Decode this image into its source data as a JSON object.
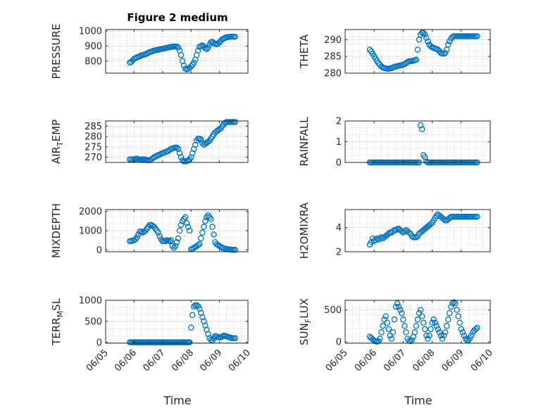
{
  "figure": {
    "title": "Figure 2 medium",
    "xlabel": "Time"
  },
  "chart_data": [
    {
      "type": "scatter",
      "ylabel": "PRESSURE",
      "ylim": [
        720,
        1010
      ],
      "yticks": [
        800,
        900,
        1000
      ],
      "ytick_labels": [
        "800",
        "900",
        "1000"
      ],
      "xlim": [
        5,
        10
      ],
      "xticks": [],
      "xtick_labels": [],
      "grid": true,
      "marker": "circle-open",
      "color": "#0072bd",
      "x": [
        5.85,
        5.9,
        5.95,
        6.0,
        6.05,
        6.1,
        6.15,
        6.2,
        6.25,
        6.3,
        6.35,
        6.4,
        6.45,
        6.5,
        6.55,
        6.6,
        6.65,
        6.7,
        6.75,
        6.8,
        6.85,
        6.9,
        6.95,
        7.0,
        7.05,
        7.1,
        7.15,
        7.2,
        7.25,
        7.3,
        7.35,
        7.4,
        7.45,
        7.5,
        7.55,
        7.6,
        7.65,
        7.7,
        7.75,
        7.8,
        7.85,
        7.9,
        7.95,
        8.0,
        8.05,
        8.1,
        8.15,
        8.2,
        8.25,
        8.3,
        8.35,
        8.4,
        8.45,
        8.5,
        8.55,
        8.6,
        8.65,
        8.7,
        8.75,
        8.8,
        8.85,
        8.9,
        8.95,
        9.0,
        9.05,
        9.1,
        9.15,
        9.2,
        9.25,
        9.3,
        9.35,
        9.4,
        9.45,
        9.5,
        9.55
      ],
      "y": [
        790,
        795,
        805,
        815,
        820,
        825,
        828,
        832,
        838,
        840,
        842,
        845,
        850,
        855,
        860,
        862,
        866,
        870,
        872,
        874,
        876,
        878,
        880,
        882,
        884,
        886,
        888,
        890,
        893,
        895,
        896,
        897,
        897,
        896,
        890,
        870,
        840,
        800,
        770,
        750,
        745,
        748,
        755,
        765,
        775,
        790,
        810,
        840,
        870,
        895,
        900,
        905,
        895,
        885,
        880,
        890,
        910,
        925,
        928,
        920,
        915,
        912,
        915,
        925,
        935,
        945,
        950,
        955,
        958,
        960,
        962,
        962,
        962,
        962,
        962
      ]
    },
    {
      "type": "scatter",
      "ylabel": "THETA",
      "ylim": [
        280,
        293
      ],
      "yticks": [
        280,
        285,
        290
      ],
      "ytick_labels": [
        "280",
        "285",
        "290"
      ],
      "xlim": [
        5,
        10
      ],
      "xticks": [],
      "xtick_labels": [],
      "grid": true,
      "marker": "circle-open",
      "color": "#0072bd",
      "x": [
        5.85,
        5.9,
        5.95,
        6.0,
        6.05,
        6.1,
        6.15,
        6.2,
        6.25,
        6.3,
        6.35,
        6.4,
        6.45,
        6.5,
        6.55,
        6.6,
        6.65,
        6.7,
        6.75,
        6.8,
        6.85,
        6.9,
        6.95,
        7.0,
        7.05,
        7.1,
        7.15,
        7.2,
        7.25,
        7.3,
        7.35,
        7.4,
        7.45,
        7.5,
        7.55,
        7.6,
        7.65,
        7.7,
        7.75,
        7.8,
        7.85,
        7.9,
        7.95,
        8.0,
        8.05,
        8.1,
        8.15,
        8.2,
        8.25,
        8.3,
        8.35,
        8.4,
        8.45,
        8.5,
        8.55,
        8.6,
        8.65,
        8.7,
        8.75,
        8.8,
        8.85,
        8.9,
        8.95,
        9.0,
        9.05,
        9.1,
        9.15,
        9.2,
        9.25,
        9.3,
        9.35,
        9.4,
        9.45,
        9.5,
        9.55
      ],
      "y": [
        287,
        286.5,
        285.8,
        285,
        284.3,
        283.6,
        283,
        282.5,
        282,
        281.7,
        281.5,
        281.4,
        281.3,
        281.3,
        281.4,
        281.5,
        281.7,
        281.9,
        282,
        282.1,
        282.2,
        282.3,
        282.4,
        282.5,
        282.7,
        283,
        283.3,
        283.5,
        283.6,
        283.6,
        283.7,
        283.8,
        284,
        287,
        290,
        291.5,
        292,
        292,
        291.5,
        290.5,
        289.5,
        288.5,
        288,
        287.7,
        287.5,
        287.3,
        287.2,
        287,
        286.5,
        286,
        285.8,
        285.8,
        286,
        287,
        288.5,
        289.5,
        290.3,
        290.8,
        291,
        291,
        291,
        291,
        291,
        291,
        291,
        291,
        291,
        291,
        291,
        291,
        291,
        291,
        291,
        291,
        291
      ]
    },
    {
      "type": "scatter",
      "ylabel": "AIR_TEMP",
      "ylim": [
        267.5,
        287.5
      ],
      "yticks": [
        270,
        275,
        280,
        285
      ],
      "ytick_labels": [
        "270",
        "275",
        "280",
        "285"
      ],
      "xlim": [
        5,
        10
      ],
      "xticks": [],
      "xtick_labels": [],
      "grid": true,
      "marker": "circle-open",
      "color": "#0072bd",
      "x": [
        5.85,
        5.9,
        5.95,
        6.0,
        6.05,
        6.1,
        6.15,
        6.2,
        6.25,
        6.3,
        6.35,
        6.4,
        6.45,
        6.5,
        6.55,
        6.6,
        6.65,
        6.7,
        6.75,
        6.8,
        6.85,
        6.9,
        6.95,
        7.0,
        7.05,
        7.1,
        7.15,
        7.2,
        7.25,
        7.3,
        7.35,
        7.4,
        7.45,
        7.5,
        7.55,
        7.6,
        7.65,
        7.7,
        7.75,
        7.8,
        7.85,
        7.9,
        7.95,
        8.0,
        8.05,
        8.1,
        8.15,
        8.2,
        8.25,
        8.3,
        8.35,
        8.4,
        8.45,
        8.5,
        8.55,
        8.6,
        8.65,
        8.7,
        8.75,
        8.8,
        8.85,
        8.9,
        8.95,
        9.0,
        9.05,
        9.1,
        9.15,
        9.2,
        9.25,
        9.3,
        9.35,
        9.4,
        9.45,
        9.5,
        9.55
      ],
      "y": [
        269,
        269,
        269,
        269,
        269.2,
        269.3,
        269,
        268.8,
        268.9,
        269,
        269,
        268.9,
        268.7,
        268.5,
        268.6,
        269,
        269.5,
        270,
        270.3,
        270.7,
        271,
        271.3,
        271.7,
        272,
        272.2,
        272.5,
        272.8,
        273,
        273.5,
        274,
        274.3,
        274.5,
        274.6,
        274.6,
        274,
        272,
        270,
        268.5,
        268,
        268,
        268.2,
        268.5,
        269,
        270,
        272,
        274,
        276,
        278,
        279,
        279,
        278.5,
        277,
        276,
        276.5,
        277,
        277.5,
        278,
        279,
        280,
        281,
        282,
        282.5,
        283,
        283.5,
        284,
        285,
        286,
        286.5,
        287,
        287,
        287,
        287,
        287,
        287,
        287
      ]
    },
    {
      "type": "scatter",
      "ylabel": "RAINFALL",
      "ylim": [
        0,
        2
      ],
      "yticks": [
        0,
        1,
        2
      ],
      "ytick_labels": [
        "0",
        "1",
        "2"
      ],
      "xlim": [
        5,
        10
      ],
      "xticks": [],
      "xtick_labels": [],
      "grid": true,
      "marker": "circle-open",
      "color": "#0072bd",
      "x": [
        5.85,
        5.9,
        5.95,
        6.0,
        6.05,
        6.1,
        6.15,
        6.2,
        6.25,
        6.3,
        6.35,
        6.4,
        6.45,
        6.5,
        6.55,
        6.6,
        6.65,
        6.7,
        6.75,
        6.8,
        6.85,
        6.9,
        6.95,
        7.0,
        7.05,
        7.1,
        7.15,
        7.2,
        7.25,
        7.3,
        7.35,
        7.4,
        7.45,
        7.5,
        7.55,
        7.6,
        7.65,
        7.7,
        7.75,
        7.8,
        7.85,
        7.9,
        7.95,
        8.0,
        8.05,
        8.1,
        8.15,
        8.2,
        8.25,
        8.3,
        8.35,
        8.4,
        8.45,
        8.5,
        8.55,
        8.6,
        8.65,
        8.7,
        8.75,
        8.8,
        8.85,
        8.9,
        8.95,
        9.0,
        9.05,
        9.1,
        9.15,
        9.2,
        9.25,
        9.3,
        9.35,
        9.4,
        9.45,
        9.5,
        9.55
      ],
      "y": [
        0,
        0,
        0,
        0,
        0,
        0,
        0,
        0,
        0,
        0,
        0,
        0,
        0,
        0,
        0,
        0,
        0,
        0,
        0,
        0,
        0,
        0,
        0,
        0,
        0,
        0,
        0,
        0,
        0,
        0,
        0,
        0,
        0,
        0,
        0,
        1.8,
        1.6,
        0.35,
        0.25,
        0.05,
        0,
        0,
        0,
        0,
        0,
        0,
        0,
        0,
        0,
        0,
        0,
        0,
        0,
        0,
        0,
        0,
        0,
        0,
        0,
        0,
        0,
        0,
        0,
        0,
        0,
        0,
        0,
        0,
        0,
        0,
        0,
        0,
        0,
        0,
        0
      ]
    },
    {
      "type": "scatter",
      "ylabel": "MIXDEPTH",
      "ylim": [
        -100,
        2100
      ],
      "yticks": [
        0,
        1000,
        2000
      ],
      "ytick_labels": [
        "0",
        "1000",
        "2000"
      ],
      "xlim": [
        5,
        10
      ],
      "xticks": [],
      "xtick_labels": [],
      "grid": true,
      "marker": "circle-open",
      "color": "#0072bd",
      "x": [
        5.85,
        5.9,
        5.95,
        6.0,
        6.05,
        6.1,
        6.15,
        6.2,
        6.25,
        6.3,
        6.35,
        6.4,
        6.45,
        6.5,
        6.55,
        6.6,
        6.65,
        6.7,
        6.75,
        6.8,
        6.85,
        6.9,
        6.95,
        7.0,
        7.05,
        7.1,
        7.15,
        7.2,
        7.25,
        7.3,
        7.35,
        7.4,
        7.45,
        7.5,
        7.55,
        7.6,
        7.65,
        7.7,
        7.75,
        7.8,
        7.85,
        7.9,
        7.95,
        8.0,
        8.05,
        8.1,
        8.15,
        8.2,
        8.25,
        8.3,
        8.35,
        8.4,
        8.45,
        8.5,
        8.55,
        8.6,
        8.65,
        8.7,
        8.75,
        8.8,
        8.85,
        8.9,
        8.95,
        9.0,
        9.05,
        9.1,
        9.15,
        9.2,
        9.25,
        9.3,
        9.35,
        9.4,
        9.45,
        9.5,
        9.55
      ],
      "y": [
        450,
        460,
        480,
        500,
        550,
        650,
        800,
        950,
        950,
        900,
        950,
        1000,
        1100,
        1200,
        1300,
        1300,
        1250,
        1200,
        1100,
        1000,
        900,
        700,
        550,
        450,
        450,
        450,
        500,
        480,
        450,
        500,
        200,
        100,
        200,
        400,
        600,
        1000,
        1300,
        1500,
        1600,
        1700,
        1400,
        1200,
        1000,
        30,
        50,
        100,
        150,
        200,
        250,
        300,
        600,
        900,
        1200,
        1500,
        1700,
        1800,
        1700,
        1600,
        1200,
        800,
        400,
        300,
        250,
        200,
        150,
        100,
        80,
        60,
        40,
        30,
        20,
        10,
        5,
        0,
        0
      ]
    },
    {
      "type": "scatter",
      "ylabel": "H2OMIXRA",
      "ylim": [
        2,
        5.5
      ],
      "yticks": [
        2,
        4
      ],
      "ytick_labels": [
        "2",
        "4"
      ],
      "xlim": [
        5,
        10
      ],
      "xticks": [],
      "xtick_labels": [],
      "grid": true,
      "marker": "circle-open",
      "color": "#0072bd",
      "x": [
        5.85,
        5.9,
        5.95,
        6.0,
        6.05,
        6.1,
        6.15,
        6.2,
        6.25,
        6.3,
        6.35,
        6.4,
        6.45,
        6.5,
        6.55,
        6.6,
        6.65,
        6.7,
        6.75,
        6.8,
        6.85,
        6.9,
        6.95,
        7.0,
        7.05,
        7.1,
        7.15,
        7.2,
        7.25,
        7.3,
        7.35,
        7.4,
        7.45,
        7.5,
        7.55,
        7.6,
        7.65,
        7.7,
        7.75,
        7.8,
        7.85,
        7.9,
        7.95,
        8.0,
        8.05,
        8.1,
        8.15,
        8.2,
        8.25,
        8.3,
        8.35,
        8.4,
        8.45,
        8.5,
        8.55,
        8.6,
        8.65,
        8.7,
        8.75,
        8.8,
        8.85,
        8.9,
        8.95,
        9.0,
        9.05,
        9.1,
        9.15,
        9.2,
        9.25,
        9.3,
        9.35,
        9.4,
        9.45,
        9.5,
        9.55
      ],
      "y": [
        2.6,
        2.8,
        3.1,
        2.9,
        3,
        3.1,
        3,
        3.1,
        3.2,
        3.1,
        3.2,
        3.3,
        3.4,
        3.5,
        3.6,
        3.6,
        3.7,
        3.8,
        3.8,
        3.9,
        3.9,
        3.8,
        3.7,
        3.6,
        3.7,
        3.8,
        3.7,
        3.6,
        3.5,
        3.3,
        3.2,
        3.2,
        3.2,
        3.3,
        3.5,
        3.6,
        3.7,
        3.8,
        3.9,
        4.0,
        4.1,
        4.2,
        4.3,
        4.4,
        4.6,
        4.8,
        5.0,
        5.1,
        5.0,
        4.9,
        4.8,
        4.7,
        4.6,
        4.6,
        4.7,
        4.8,
        4.9,
        4.9,
        4.9,
        4.9,
        4.9,
        4.9,
        4.9,
        4.9,
        4.9,
        4.9,
        4.9,
        4.9,
        4.9,
        4.9,
        4.9,
        4.9,
        4.9,
        4.9,
        4.9
      ]
    },
    {
      "type": "scatter",
      "ylabel": "TERR_MSL",
      "ylim": [
        -20,
        1000
      ],
      "yticks": [
        0,
        500,
        1000
      ],
      "ytick_labels": [
        "0",
        "500",
        "1000"
      ],
      "xlim": [
        5,
        10
      ],
      "xticks": [
        5,
        6,
        7,
        8,
        9,
        10
      ],
      "xtick_labels": [
        "06/05",
        "06/06",
        "06/07",
        "06/08",
        "06/09",
        "06/10"
      ],
      "grid": true,
      "marker": "circle-open",
      "color": "#0072bd",
      "x": [
        5.85,
        5.9,
        5.95,
        6.0,
        6.05,
        6.1,
        6.15,
        6.2,
        6.25,
        6.3,
        6.35,
        6.4,
        6.45,
        6.5,
        6.55,
        6.6,
        6.65,
        6.7,
        6.75,
        6.8,
        6.85,
        6.9,
        6.95,
        7.0,
        7.05,
        7.1,
        7.15,
        7.2,
        7.25,
        7.3,
        7.35,
        7.4,
        7.45,
        7.5,
        7.55,
        7.6,
        7.65,
        7.7,
        7.75,
        7.8,
        7.85,
        7.9,
        7.95,
        8.0,
        8.05,
        8.1,
        8.15,
        8.2,
        8.25,
        8.3,
        8.35,
        8.4,
        8.45,
        8.5,
        8.55,
        8.6,
        8.65,
        8.7,
        8.75,
        8.8,
        8.85,
        8.9,
        8.95,
        9.0,
        9.05,
        9.1,
        9.15,
        9.2,
        9.25,
        9.3,
        9.35,
        9.4,
        9.45,
        9.5,
        9.55
      ],
      "y": [
        0,
        0,
        0,
        0,
        0,
        0,
        0,
        0,
        0,
        0,
        0,
        0,
        0,
        0,
        0,
        0,
        0,
        0,
        0,
        0,
        0,
        0,
        0,
        0,
        0,
        0,
        0,
        0,
        0,
        0,
        0,
        0,
        0,
        0,
        0,
        0,
        0,
        0,
        0,
        0,
        0,
        0,
        0,
        350,
        650,
        850,
        880,
        880,
        860,
        800,
        700,
        600,
        500,
        400,
        300,
        200,
        100,
        60,
        40,
        100,
        150,
        140,
        120,
        120,
        120,
        140,
        160,
        150,
        140,
        130,
        120,
        110,
        100,
        100,
        100
      ]
    },
    {
      "type": "scatter",
      "ylabel": "SUN_FLUX",
      "ylim": [
        -20,
        650
      ],
      "yticks": [
        0,
        500
      ],
      "ytick_labels": [
        "0",
        "500"
      ],
      "xlim": [
        5,
        10
      ],
      "xticks": [
        5,
        6,
        7,
        8,
        9,
        10
      ],
      "xtick_labels": [
        "06/05",
        "06/06",
        "06/07",
        "06/08",
        "06/09",
        "06/10"
      ],
      "grid": true,
      "marker": "circle-open",
      "color": "#0072bd",
      "x": [
        5.85,
        5.9,
        5.95,
        6.0,
        6.05,
        6.1,
        6.15,
        6.2,
        6.25,
        6.3,
        6.35,
        6.4,
        6.45,
        6.5,
        6.55,
        6.6,
        6.65,
        6.7,
        6.75,
        6.8,
        6.85,
        6.9,
        6.95,
        7.0,
        7.05,
        7.1,
        7.15,
        7.2,
        7.25,
        7.3,
        7.35,
        7.4,
        7.45,
        7.5,
        7.55,
        7.6,
        7.65,
        7.7,
        7.75,
        7.8,
        7.85,
        7.9,
        7.95,
        8.0,
        8.05,
        8.1,
        8.15,
        8.2,
        8.25,
        8.3,
        8.35,
        8.4,
        8.45,
        8.5,
        8.55,
        8.6,
        8.65,
        8.7,
        8.75,
        8.8,
        8.85,
        8.9,
        8.95,
        9.0,
        9.05,
        9.1,
        9.15,
        9.2,
        9.25,
        9.3,
        9.35,
        9.4,
        9.45,
        9.5,
        9.55
      ],
      "y": [
        80,
        60,
        40,
        20,
        10,
        5,
        10,
        50,
        150,
        250,
        350,
        400,
        300,
        200,
        100,
        50,
        150,
        350,
        550,
        600,
        550,
        500,
        450,
        350,
        250,
        150,
        50,
        20,
        10,
        30,
        80,
        150,
        250,
        350,
        450,
        500,
        400,
        300,
        200,
        100,
        50,
        100,
        200,
        300,
        350,
        300,
        250,
        200,
        150,
        100,
        50,
        100,
        150,
        250,
        350,
        450,
        550,
        600,
        620,
        600,
        500,
        400,
        300,
        200,
        150,
        100,
        50,
        30,
        30,
        60,
        100,
        150,
        180,
        200,
        220
      ]
    }
  ]
}
